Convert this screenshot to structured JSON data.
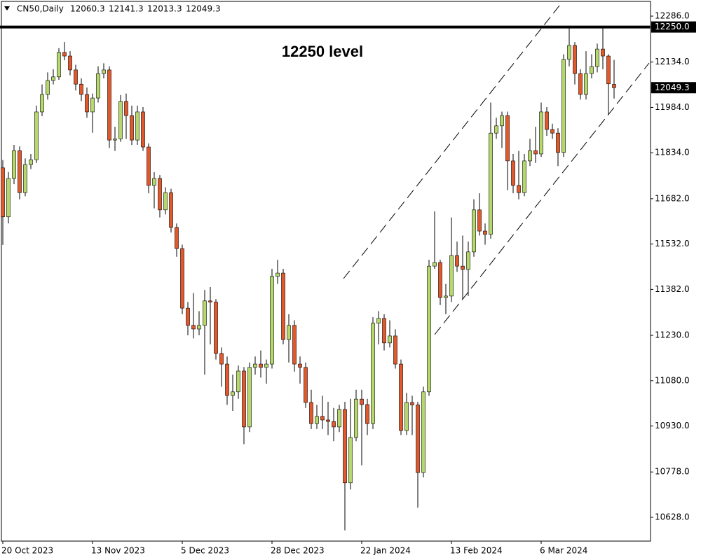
{
  "chart_data": {
    "type": "candlestick",
    "title": "CN50,Daily",
    "annotation": "12250 level",
    "up_color": "#b5d86a",
    "down_color": "#e2582b",
    "hline": {
      "value": 12250,
      "label": "12250.0"
    },
    "ylim": [
      10549.3,
      12332.4
    ],
    "yticks": [
      {
        "value": 12286,
        "label": "12286.0"
      },
      {
        "value": 12134,
        "label": "12134.0"
      },
      {
        "value": 11984,
        "label": "11984.0"
      },
      {
        "value": 11834,
        "label": "11834.0"
      },
      {
        "value": 11682,
        "label": "11682.0"
      },
      {
        "value": 11532,
        "label": "11532.0"
      },
      {
        "value": 11382,
        "label": "11382.0"
      },
      {
        "value": 11230,
        "label": "11230.0"
      },
      {
        "value": 11080,
        "label": "11080.0"
      },
      {
        "value": 10930,
        "label": "10930.0"
      },
      {
        "value": 10778,
        "label": "10778.0"
      },
      {
        "value": 10628,
        "label": "10628.0"
      }
    ],
    "categories": [
      "20 Oct 2023",
      null,
      null,
      null,
      null,
      null,
      null,
      null,
      null,
      null,
      null,
      null,
      null,
      null,
      null,
      null,
      "13 Nov 2023",
      null,
      null,
      null,
      null,
      null,
      null,
      null,
      null,
      null,
      null,
      null,
      null,
      null,
      null,
      null,
      "5 Dec 2023",
      null,
      null,
      null,
      null,
      null,
      null,
      null,
      null,
      null,
      null,
      null,
      null,
      null,
      null,
      null,
      "28 Dec 2023",
      null,
      null,
      null,
      null,
      null,
      null,
      null,
      null,
      null,
      null,
      null,
      null,
      null,
      null,
      null,
      "22 Jan 2024",
      null,
      null,
      null,
      null,
      null,
      null,
      null,
      null,
      null,
      null,
      null,
      null,
      null,
      null,
      null,
      "13 Feb 2024",
      null,
      null,
      null,
      null,
      null,
      null,
      null,
      null,
      null,
      null,
      null,
      null,
      null,
      null,
      null,
      "6 Mar 2024",
      null,
      null,
      null,
      null,
      null,
      null,
      null,
      null,
      null,
      null,
      null,
      null,
      null
    ],
    "open": [
      11784,
      11622,
      11749,
      11841,
      11702,
      11795,
      11811,
      11969,
      12027,
      12073,
      12085,
      12166,
      12154,
      12108,
      12061,
      12027,
      11969,
      12015,
      12096,
      12108,
      11876,
      11880,
      12004,
      11957,
      11876,
      11969,
      11853,
      11726,
      11749,
      11645,
      11702,
      11587,
      11517,
      11320,
      11263,
      11251,
      11263,
      11344,
      11340,
      11170,
      11135,
      11031,
      11043,
      11112,
      10927,
      11124,
      11135,
      11124,
      11135,
      11425,
      11436,
      11216,
      11263,
      11135,
      11124,
      11008,
      10938,
      10962,
      10950,
      10945,
      10927,
      10985,
      10742,
      10892,
      11019,
      11001,
      10938,
      11270,
      11286,
      11205,
      11228,
      11135,
      10915,
      11008,
      11000,
      10776,
      11043,
      11459,
      11471,
      11355,
      11360,
      11494,
      11459,
      11448,
      11506,
      11645,
      11575,
      11564,
      11899,
      11923,
      11957,
      11807,
      11726,
      11702,
      11807,
      11841,
      11830,
      11969,
      11911,
      11899,
      11835,
      12143,
      12189,
      12096,
      12027,
      12096,
      12119,
      12177,
      12154,
      12060.3
    ],
    "high": [
      11810,
      11770,
      11860,
      11855,
      11815,
      11830,
      11990,
      12060,
      12100,
      12110,
      12180,
      12200,
      12170,
      12125,
      12080,
      12050,
      12030,
      12120,
      12130,
      12120,
      11920,
      12025,
      12030,
      11990,
      11990,
      11985,
      11865,
      11770,
      11760,
      11720,
      11715,
      11600,
      11530,
      11340,
      11370,
      11310,
      11380,
      11390,
      11350,
      11190,
      11160,
      11100,
      11130,
      11125,
      11140,
      11160,
      11180,
      11150,
      11450,
      11480,
      11450,
      11300,
      11280,
      11160,
      11140,
      11050,
      11000,
      11030,
      11010,
      10990,
      11000,
      11010,
      11020,
      11050,
      11050,
      11020,
      11290,
      11310,
      11300,
      11280,
      11250,
      11150,
      11040,
      11030,
      11010,
      11060,
      11480,
      11640,
      11480,
      11400,
      11620,
      11540,
      11560,
      11540,
      11680,
      11700,
      11600,
      12000,
      11950,
      11970,
      11970,
      11830,
      11840,
      11830,
      11880,
      11920,
      12000,
      11985,
      11930,
      11915,
      12160,
      12250,
      12200,
      12110,
      12170,
      12160,
      12195,
      12250,
      12160,
      12141.3
    ],
    "low": [
      11529,
      11600,
      11730,
      11680,
      11690,
      11780,
      11800,
      11955,
      12010,
      12060,
      12075,
      12140,
      12090,
      12040,
      12005,
      11950,
      11900,
      12000,
      12080,
      11850,
      11840,
      11870,
      11880,
      11860,
      11860,
      11840,
      11700,
      11650,
      11620,
      11630,
      11570,
      11490,
      11300,
      11230,
      11220,
      11230,
      11100,
      11200,
      11150,
      11060,
      11000,
      10980,
      11020,
      10870,
      10910,
      11100,
      11090,
      11070,
      11120,
      11400,
      11200,
      11140,
      11110,
      11070,
      10990,
      10920,
      10920,
      10920,
      10900,
      10880,
      10910,
      10585,
      10720,
      10880,
      10800,
      10900,
      10920,
      11200,
      11180,
      11190,
      11120,
      10900,
      10900,
      10900,
      10660,
      10760,
      11030,
      11450,
      11330,
      11300,
      11340,
      11440,
      11350,
      11360,
      11490,
      11560,
      11530,
      11550,
      11880,
      11850,
      11710,
      11700,
      11680,
      11690,
      11790,
      11800,
      11820,
      11890,
      11880,
      11790,
      11820,
      12120,
      12060,
      12010,
      12010,
      12080,
      12100,
      12110,
      11960,
      12013.3
    ],
    "close": [
      11622,
      11749,
      11841,
      11702,
      11795,
      11811,
      11969,
      12027,
      12073,
      12085,
      12166,
      12154,
      12108,
      12061,
      12027,
      11969,
      12015,
      12096,
      12108,
      11876,
      11880,
      12004,
      11957,
      11876,
      11969,
      11853,
      11726,
      11749,
      11645,
      11702,
      11587,
      11517,
      11320,
      11263,
      11251,
      11263,
      11344,
      11340,
      11170,
      11135,
      11031,
      11043,
      11112,
      10927,
      11124,
      11135,
      11124,
      11135,
      11425,
      11436,
      11216,
      11263,
      11135,
      11124,
      11008,
      10938,
      10962,
      10950,
      10945,
      10927,
      10985,
      10742,
      10892,
      11019,
      11001,
      10938,
      11270,
      11286,
      11205,
      11228,
      11135,
      10915,
      11008,
      11000,
      10776,
      11043,
      11459,
      11471,
      11355,
      11360,
      11494,
      11459,
      11448,
      11506,
      11645,
      11575,
      11564,
      11899,
      11923,
      11957,
      11807,
      11726,
      11702,
      11807,
      11841,
      11830,
      11969,
      11911,
      11899,
      11835,
      12143,
      12189,
      12096,
      12027,
      12096,
      12119,
      12177,
      12154,
      12062,
      12049.3
    ]
  }
}
